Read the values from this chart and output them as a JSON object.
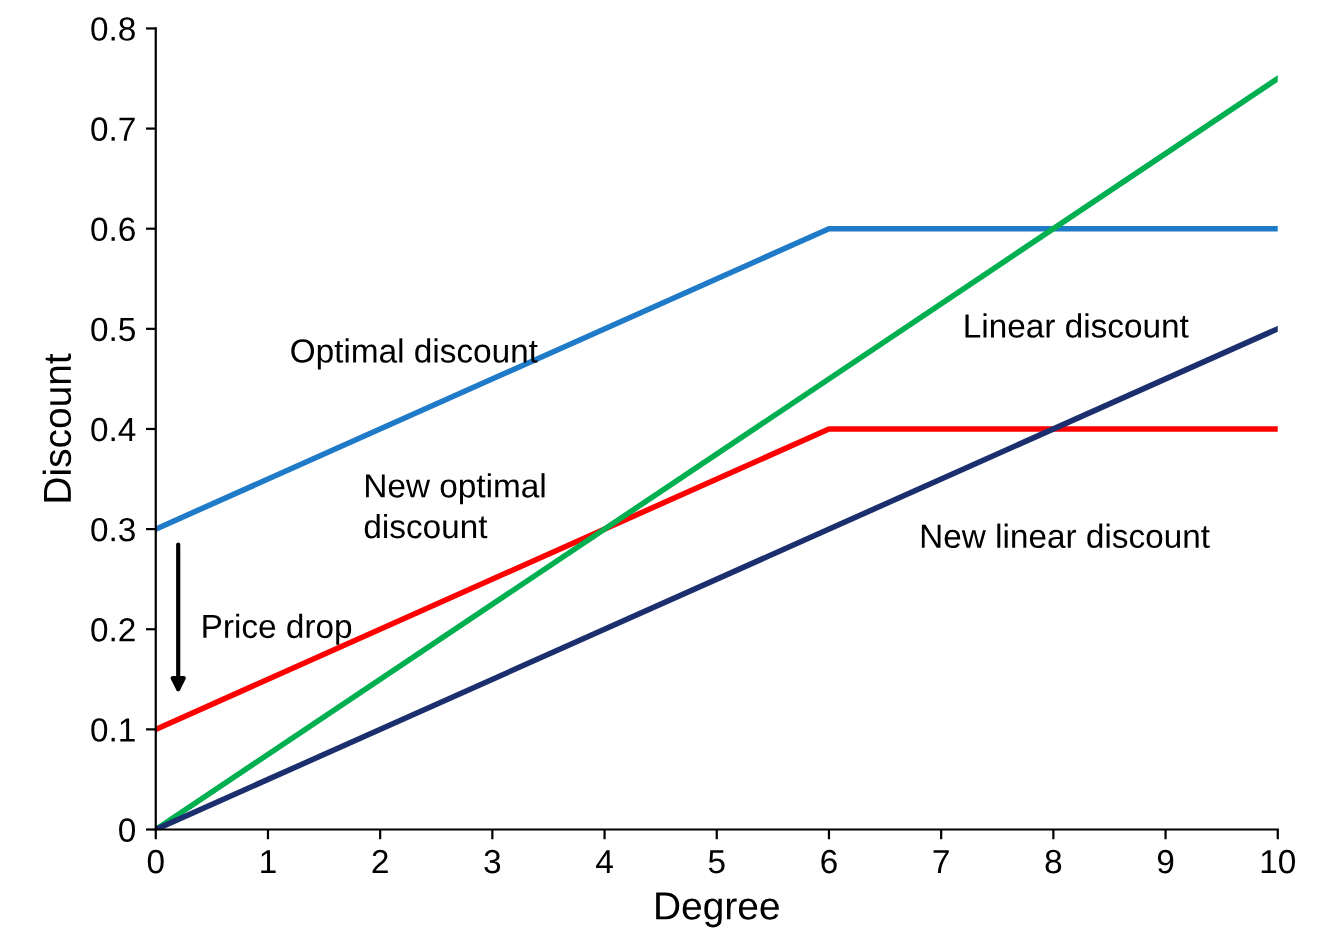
{
  "chart_data": {
    "type": "line",
    "xlabel": "Degree",
    "ylabel": "Discount",
    "xlim": [
      0,
      10
    ],
    "xticks": [
      0,
      1,
      2,
      3,
      4,
      5,
      6,
      7,
      8,
      9,
      10
    ],
    "ylim": [
      0,
      0.8
    ],
    "yticks": [
      0,
      0.1,
      0.2,
      0.3,
      0.4,
      0.5,
      0.6,
      0.7,
      0.8
    ],
    "grid": false,
    "legend": false,
    "marker": "none",
    "line_style": "solid",
    "series": [
      {
        "name": "Optimal discount",
        "color": "#1f7bc8",
        "x": [
          0,
          6,
          10
        ],
        "values": [
          0.3,
          0.6,
          0.6
        ]
      },
      {
        "name": "New optimal discount",
        "color": "#ff0000",
        "x": [
          0,
          6,
          10
        ],
        "values": [
          0.1,
          0.4,
          0.4
        ]
      },
      {
        "name": "Linear discount",
        "color": "#00b050",
        "x": [
          0,
          10
        ],
        "values": [
          0,
          0.75
        ]
      },
      {
        "name": "New linear discount",
        "color": "#1b2f6e",
        "x": [
          0,
          10
        ],
        "values": [
          0,
          0.5
        ]
      }
    ],
    "annotations": [
      "Price drop"
    ]
  }
}
